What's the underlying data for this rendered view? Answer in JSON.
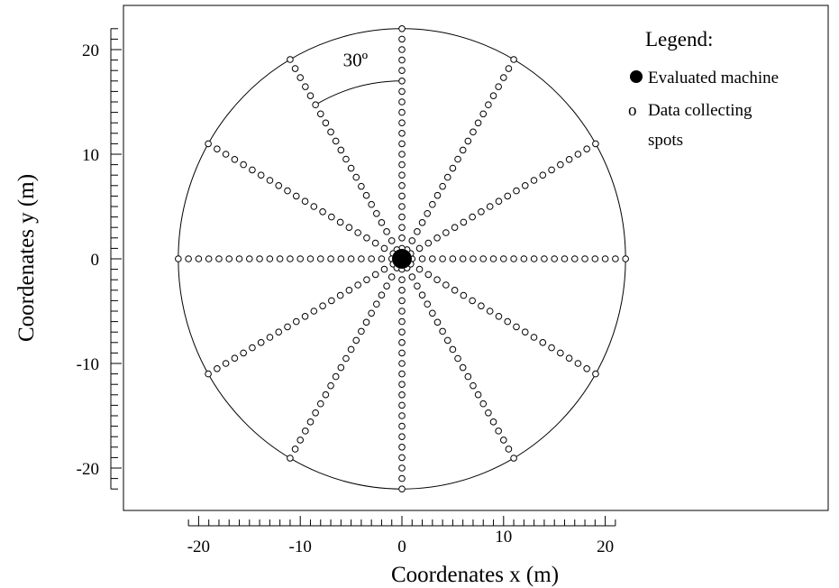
{
  "chart_data": {
    "type": "scatter",
    "xlabel": "Coordenates x (m)",
    "ylabel": "Coordenates y (m)",
    "xlim": [
      -24,
      42
    ],
    "ylim": [
      -24,
      23
    ],
    "x_ticks": [
      -20,
      -10,
      0,
      10,
      20
    ],
    "y_ticks": [
      -20,
      -10,
      0,
      10,
      20
    ],
    "circle_radius": 22,
    "num_rays": 12,
    "ray_angle_step_deg": 30,
    "point_spacing": 1,
    "points_per_ray": 22,
    "angle_annotation": "30º",
    "series": [
      {
        "name": "Evaluated machine",
        "x": [
          0
        ],
        "y": [
          0
        ]
      },
      {
        "name": "Data collecting spots"
      }
    ],
    "legend": {
      "title": "Legend:",
      "position": "top-right",
      "items": [
        {
          "symbol": "●",
          "label": "Evaluated machine"
        },
        {
          "symbol": "o",
          "label": "Data collecting"
        },
        {
          "symbol": "",
          "label": "spots"
        }
      ]
    }
  }
}
